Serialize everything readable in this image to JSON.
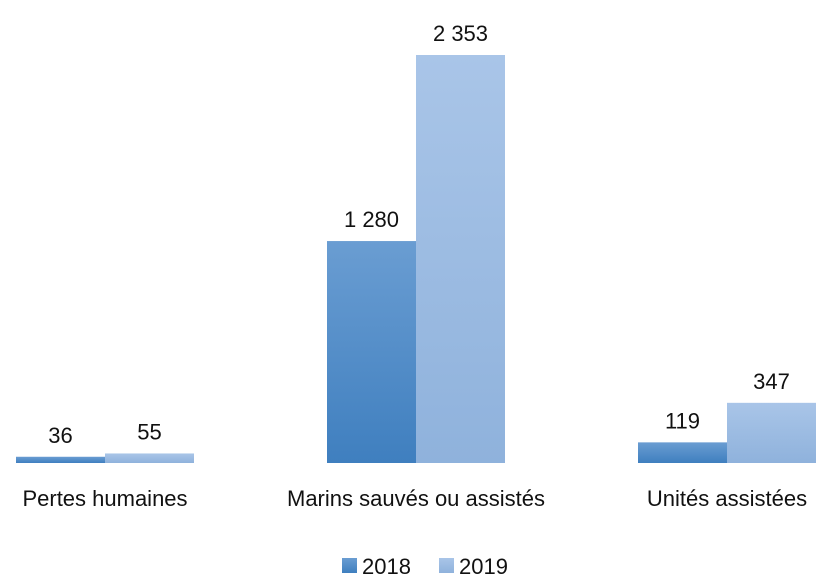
{
  "chart_data": {
    "type": "bar",
    "title": "",
    "xlabel": "",
    "ylabel": "",
    "categories": [
      "Pertes humaines",
      "Marins sauvés ou assistés",
      "Unités assistées"
    ],
    "series": [
      {
        "name": "2018",
        "values": [
          36,
          1280,
          119
        ],
        "labels": [
          "36",
          "1 280",
          "119"
        ],
        "color": "#3f7fbf",
        "color_light": "#6a9dd2"
      },
      {
        "name": "2019",
        "values": [
          55,
          2353,
          347
        ],
        "labels": [
          "55",
          "2 353",
          "347"
        ],
        "color": "#8fb2dc",
        "color_light": "#a9c5e8"
      }
    ],
    "ylim": [
      0,
      2353
    ],
    "grid": false,
    "legend": "bottom",
    "axis_visible": false
  }
}
